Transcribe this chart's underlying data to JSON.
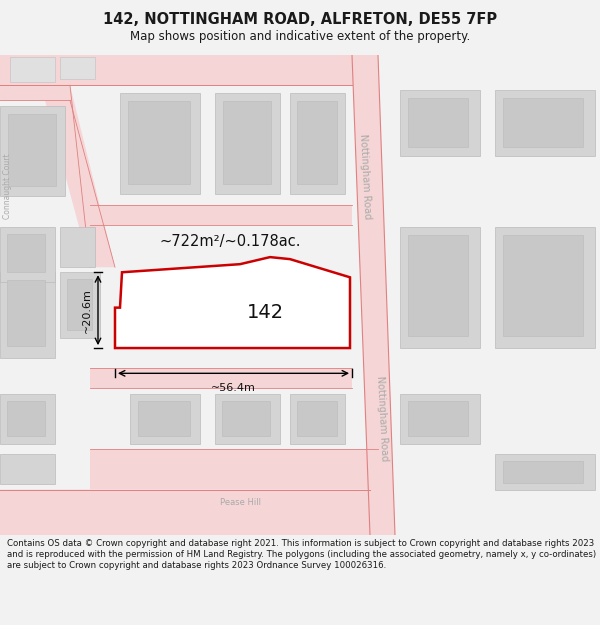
{
  "title": "142, NOTTINGHAM ROAD, ALFRETON, DE55 7FP",
  "subtitle": "Map shows position and indicative extent of the property.",
  "footer": "Contains OS data © Crown copyright and database right 2021. This information is subject to Crown copyright and database rights 2023 and is reproduced with the permission of HM Land Registry. The polygons (including the associated geometry, namely x, y co-ordinates) are subject to Crown copyright and database rights 2023 Ordnance Survey 100026316.",
  "bg_color": "#f2f2f2",
  "map_bg": "#ffffff",
  "road_fill": "#f5d5d5",
  "road_edge": "#e08080",
  "building_fill": "#d4d4d4",
  "building_edge": "#bbbbbb",
  "highlight_fill": "#ffffff",
  "highlight_edge": "#cc0000",
  "highlight_lw": 1.8,
  "area_label": "~722m²/~0.178ac.",
  "width_label": "~56.4m",
  "height_label": "~20.6m",
  "house_number": "142",
  "road_label_top": "Nottingham Road",
  "road_label_bottom": "Nottingham Road",
  "street_label_left": "Connaught Court",
  "street_label_bottom": "Pease Hill",
  "title_fontsize": 10.5,
  "subtitle_fontsize": 8.5,
  "footer_fontsize": 6.2
}
